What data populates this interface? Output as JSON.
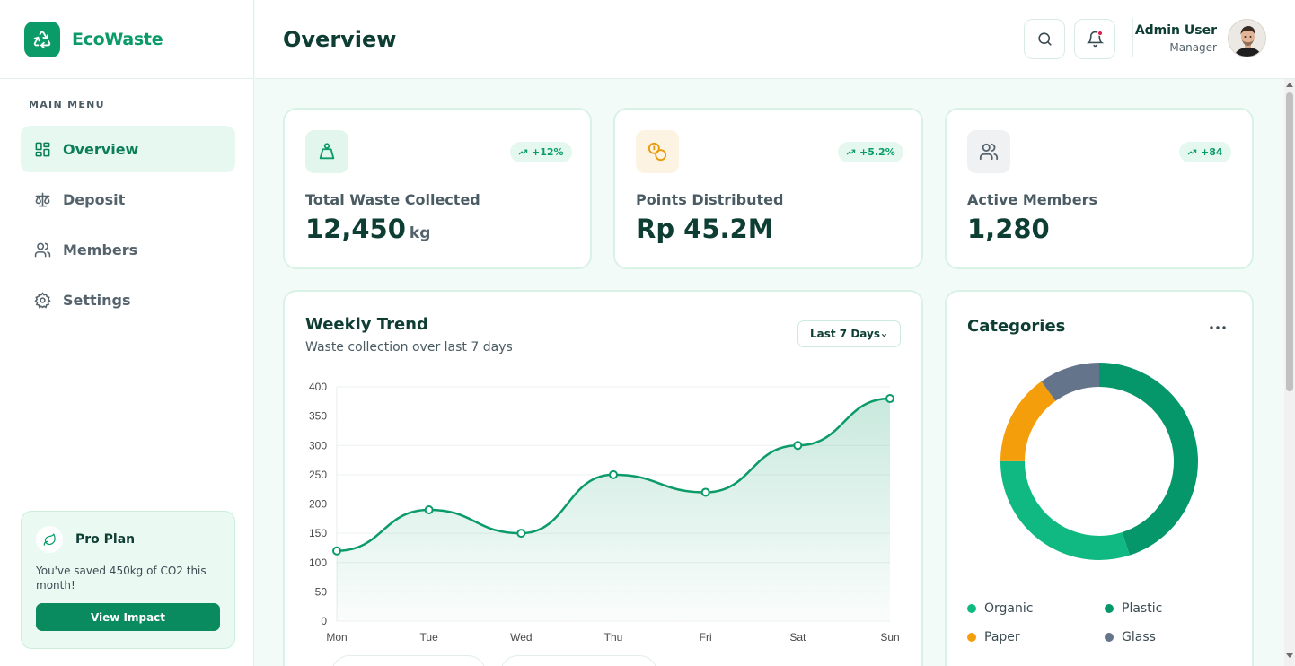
{
  "brand": {
    "name": "EcoWaste"
  },
  "sidebar": {
    "menu_title": "MAIN MENU",
    "items": [
      {
        "label": "Overview",
        "icon": "grid-icon",
        "active": true
      },
      {
        "label": "Deposit",
        "icon": "scale-icon",
        "active": false
      },
      {
        "label": "Members",
        "icon": "users-icon",
        "active": false
      },
      {
        "label": "Settings",
        "icon": "gear-icon",
        "active": false
      }
    ],
    "pro": {
      "title": "Pro Plan",
      "text": "You've saved 450kg of CO2 this month!",
      "button": "View Impact"
    }
  },
  "header": {
    "title": "Overview",
    "user_name": "Admin User",
    "user_role": "Manager"
  },
  "stats": [
    {
      "label": "Total Waste Collected",
      "value": "12,450",
      "unit": "kg",
      "badge": "+12%",
      "icon": "weight-bag-icon"
    },
    {
      "label": "Points Distributed",
      "value": "Rp 45.2M",
      "unit": "",
      "badge": "+5.2%",
      "icon": "coins-icon"
    },
    {
      "label": "Active Members",
      "value": "1,280",
      "unit": "",
      "badge": "+84",
      "icon": "users-icon"
    }
  ],
  "trend": {
    "title": "Weekly Trend",
    "subtitle": "Waste collection over last 7 days",
    "range_select": "Last 7 Days"
  },
  "categories": {
    "title": "Categories",
    "legend": [
      {
        "label": "Organic",
        "color": "#10b981"
      },
      {
        "label": "Plastic",
        "color": "#059669"
      },
      {
        "label": "Paper",
        "color": "#f59e0b"
      },
      {
        "label": "Glass",
        "color": "#64748b"
      }
    ]
  },
  "colors": {
    "accent": "#0a9b68",
    "line": "#0a9b68"
  },
  "chart_data": [
    {
      "type": "area",
      "title": "Weekly Trend",
      "x": [
        "Mon",
        "Tue",
        "Wed",
        "Thu",
        "Fri",
        "Sat",
        "Sun"
      ],
      "values": [
        120,
        190,
        150,
        250,
        220,
        300,
        380
      ],
      "ylim": [
        0,
        400
      ],
      "yticks": [
        0,
        50,
        100,
        150,
        200,
        250,
        300,
        350,
        400
      ],
      "grid": true
    },
    {
      "type": "pie",
      "title": "Categories",
      "labels": [
        "Plastic",
        "Organic",
        "Paper",
        "Glass"
      ],
      "values": [
        45,
        30,
        15,
        10
      ],
      "colors": [
        "#059669",
        "#10b981",
        "#f59e0b",
        "#64748b"
      ],
      "donut": true
    }
  ]
}
